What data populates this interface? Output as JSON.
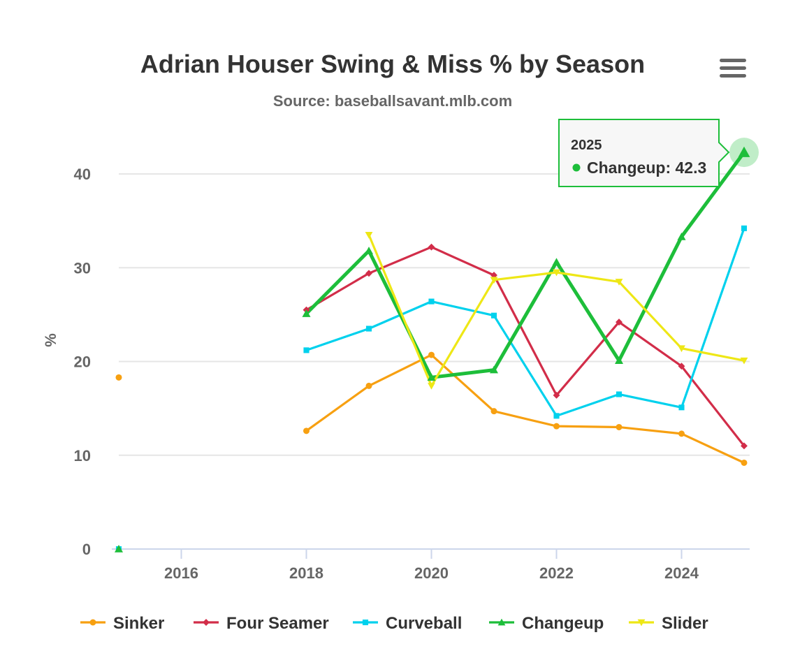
{
  "chart_data": {
    "type": "line",
    "title": "Adrian Houser Swing & Miss % by Season",
    "subtitle": "Source: baseballsavant.mlb.com",
    "ylabel": "%",
    "xlabel": "",
    "xlim": [
      2015,
      2025
    ],
    "ylim": [
      0,
      40
    ],
    "x_ticks": [
      2016,
      2018,
      2020,
      2022,
      2024
    ],
    "y_ticks": [
      0,
      10,
      20,
      30,
      40
    ],
    "grid": "horizontal",
    "legend_position": "bottom",
    "series": [
      {
        "name": "Sinker",
        "color": "#f7a011",
        "marker": "circle",
        "points": [
          {
            "x": 2015,
            "y": 18.3
          },
          {
            "x": 2018,
            "y": 12.6
          },
          {
            "x": 2019,
            "y": 17.4
          },
          {
            "x": 2020,
            "y": 20.7
          },
          {
            "x": 2021,
            "y": 14.7
          },
          {
            "x": 2022,
            "y": 13.1
          },
          {
            "x": 2023,
            "y": 13.0
          },
          {
            "x": 2024,
            "y": 12.3
          },
          {
            "x": 2025,
            "y": 9.2
          }
        ]
      },
      {
        "name": "Four Seamer",
        "color": "#d22d49",
        "marker": "diamond",
        "points": [
          {
            "x": 2018,
            "y": 25.5
          },
          {
            "x": 2019,
            "y": 29.4
          },
          {
            "x": 2020,
            "y": 32.2
          },
          {
            "x": 2021,
            "y": 29.2
          },
          {
            "x": 2022,
            "y": 16.4
          },
          {
            "x": 2023,
            "y": 24.2
          },
          {
            "x": 2024,
            "y": 19.5
          },
          {
            "x": 2025,
            "y": 11.0
          }
        ]
      },
      {
        "name": "Curveball",
        "color": "#00d1ed",
        "marker": "square",
        "points": [
          {
            "x": 2015,
            "y": 0.0
          },
          {
            "x": 2018,
            "y": 21.2
          },
          {
            "x": 2019,
            "y": 23.5
          },
          {
            "x": 2020,
            "y": 26.4
          },
          {
            "x": 2021,
            "y": 24.9
          },
          {
            "x": 2022,
            "y": 14.2
          },
          {
            "x": 2023,
            "y": 16.5
          },
          {
            "x": 2024,
            "y": 15.1
          },
          {
            "x": 2025,
            "y": 34.2
          }
        ]
      },
      {
        "name": "Changeup",
        "color": "#1dbe3a",
        "marker": "triangle",
        "points": [
          {
            "x": 2015,
            "y": 0.0
          },
          {
            "x": 2018,
            "y": 25.1
          },
          {
            "x": 2019,
            "y": 31.8
          },
          {
            "x": 2020,
            "y": 18.3
          },
          {
            "x": 2021,
            "y": 19.1
          },
          {
            "x": 2022,
            "y": 30.6
          },
          {
            "x": 2023,
            "y": 20.1
          },
          {
            "x": 2024,
            "y": 33.3
          },
          {
            "x": 2025,
            "y": 42.3
          }
        ]
      },
      {
        "name": "Slider",
        "color": "#eee716",
        "marker": "triangle-down",
        "points": [
          {
            "x": 2019,
            "y": 33.5
          },
          {
            "x": 2020,
            "y": 17.4
          },
          {
            "x": 2021,
            "y": 28.7
          },
          {
            "x": 2022,
            "y": 29.5
          },
          {
            "x": 2023,
            "y": 28.5
          },
          {
            "x": 2024,
            "y": 21.4
          },
          {
            "x": 2025,
            "y": 20.1
          }
        ]
      }
    ],
    "tooltip": {
      "header": "2025",
      "series_name": "Changeup",
      "value": "42.3",
      "text": "Changeup: 42.3"
    },
    "active_point": {
      "series": "Changeup",
      "x": 2025,
      "y": 42.3
    }
  },
  "menu": {
    "icon": "hamburger-menu-icon",
    "color": "#666666"
  }
}
